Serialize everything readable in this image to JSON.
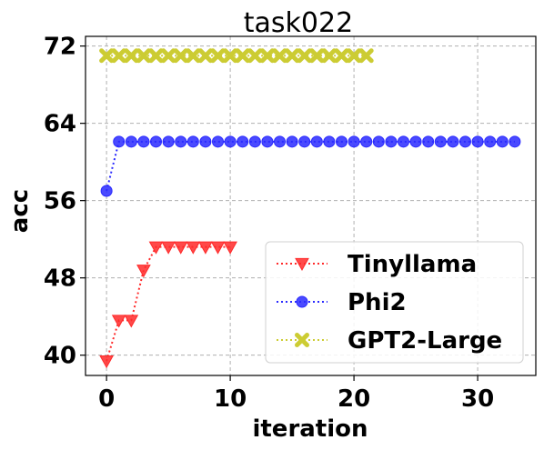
{
  "chart_data": {
    "type": "line",
    "title": "task022",
    "xlabel": "iteration",
    "ylabel": "acc",
    "xlim": [
      -1.7,
      34.7
    ],
    "ylim": [
      37.9,
      73
    ],
    "xticks": [
      0,
      10,
      20,
      30
    ],
    "yticks": [
      40,
      48,
      56,
      64,
      72
    ],
    "grid": true,
    "legend_position": "lower-right",
    "series": [
      {
        "name": "Tinyllama",
        "color": "#ff2a2a",
        "marker": "triangle-down",
        "linestyle": "dotted",
        "x": [
          0,
          1,
          2,
          3,
          4,
          5,
          6,
          7,
          8,
          9,
          10
        ],
        "y": [
          39.4,
          43.6,
          43.6,
          48.8,
          51.2,
          51.2,
          51.2,
          51.2,
          51.2,
          51.2,
          51.2
        ]
      },
      {
        "name": "Phi2",
        "color": "#2a2aff",
        "marker": "circle",
        "linestyle": "dotted",
        "x": [
          0,
          1,
          2,
          3,
          4,
          5,
          6,
          7,
          8,
          9,
          10,
          11,
          12,
          13,
          14,
          15,
          16,
          17,
          18,
          19,
          20,
          21,
          22,
          23,
          24,
          25,
          26,
          27,
          28,
          29,
          30,
          31,
          32,
          33
        ],
        "y": [
          57.0,
          62.1,
          62.1,
          62.1,
          62.1,
          62.1,
          62.1,
          62.1,
          62.1,
          62.1,
          62.1,
          62.1,
          62.1,
          62.1,
          62.1,
          62.1,
          62.1,
          62.1,
          62.1,
          62.1,
          62.1,
          62.1,
          62.1,
          62.1,
          62.1,
          62.1,
          62.1,
          62.1,
          62.1,
          62.1,
          62.1,
          62.1,
          62.1,
          62.1
        ]
      },
      {
        "name": "GPT2-Large",
        "color": "#cccc33",
        "marker": "x",
        "linestyle": "dotted",
        "x": [
          0,
          1,
          2,
          3,
          4,
          5,
          6,
          7,
          8,
          9,
          10,
          11,
          12,
          13,
          14,
          15,
          16,
          17,
          18,
          19,
          20,
          21
        ],
        "y": [
          71.0,
          71.0,
          71.0,
          71.0,
          71.0,
          71.0,
          71.0,
          71.0,
          71.0,
          71.0,
          71.0,
          71.0,
          71.0,
          71.0,
          71.0,
          71.0,
          71.0,
          71.0,
          71.0,
          71.0,
          71.0,
          71.0
        ]
      }
    ]
  }
}
